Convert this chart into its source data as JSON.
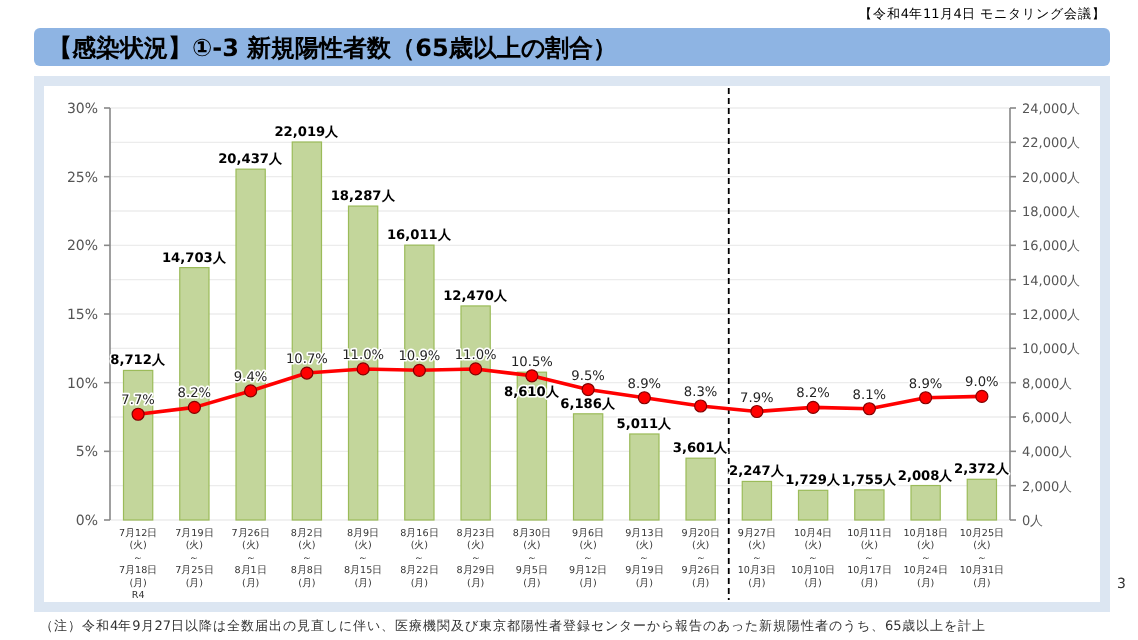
{
  "chart_data": {
    "type": "bar",
    "title": "【感染状況】①-3 新規陽性者数（65歳以上の割合）",
    "subtitle": "【令和4年11月4日 モニタリング会議】",
    "categories": [
      "7月12日\n(火)\n～\n7月18日\n(月)\nR4",
      "7月19日\n(火)\n～\n7月25日\n(月)",
      "7月26日\n(火)\n～\n8月1日\n(月)",
      "8月2日\n(火)\n～\n8月8日\n(月)",
      "8月9日\n(火)\n～\n8月15日\n(月)",
      "8月16日\n(火)\n～\n8月22日\n(月)",
      "8月23日\n(火)\n～\n8月29日\n(月)",
      "8月30日\n(火)\n～\n9月5日\n(月)",
      "9月6日\n(火)\n～\n9月12日\n(月)",
      "9月13日\n(火)\n～\n9月19日\n(月)",
      "9月20日\n(火)\n～\n9月26日\n(月)",
      "9月27日\n(火)\n～\n10月3日\n(月)",
      "10月4日\n(火)\n～\n10月10日\n(月)",
      "10月11日\n(火)\n～\n10月17日\n(月)",
      "10月18日\n(火)\n～\n10月24日\n(月)",
      "10月25日\n(火)\n～\n10月31日\n(月)"
    ],
    "series": [
      {
        "axis": "y2",
        "color": "#c3d69b",
        "values": [
          8712,
          14703,
          20437,
          22019,
          18287,
          16011,
          12470,
          8610,
          6186,
          5011,
          3601,
          2247,
          1729,
          1755,
          2008,
          2372
        ],
        "value_labels": [
          "8,712人",
          "14,703人",
          "20,437人",
          "22,019人",
          "18,287人",
          "16,011人",
          "12,470人",
          "8,610人",
          "6,186人",
          "5,011人",
          "3,601人",
          "2,247人",
          "1,729人",
          "1,755人",
          "2,008人",
          "2,372人"
        ]
      },
      {
        "type": "line",
        "axis": "y",
        "color": "#ff0000",
        "marker": "circle",
        "line_style": "solid",
        "values": [
          7.7,
          8.2,
          9.4,
          10.7,
          11.0,
          10.9,
          11.0,
          10.5,
          9.5,
          8.9,
          8.3,
          7.9,
          8.2,
          8.1,
          8.9,
          9.0
        ],
        "value_labels": [
          "7.7%",
          "8.2%",
          "9.4%",
          "10.7%",
          "11.0%",
          "10.9%",
          "11.0%",
          "10.5%",
          "9.5%",
          "8.9%",
          "8.3%",
          "7.9%",
          "8.2%",
          "8.1%",
          "8.9%",
          "9.0%"
        ]
      }
    ],
    "ylim": [
      0,
      30
    ],
    "yticks": [
      {
        "value": 0,
        "label": "0%"
      },
      {
        "value": 5,
        "label": "5%"
      },
      {
        "value": 10,
        "label": "10%"
      },
      {
        "value": 15,
        "label": "15%"
      },
      {
        "value": 20,
        "label": "20%"
      },
      {
        "value": 25,
        "label": "25%"
      },
      {
        "value": 30,
        "label": "30%"
      }
    ],
    "y2lim": [
      0,
      24000
    ],
    "y2ticks": [
      {
        "value": 0,
        "label": "0人"
      },
      {
        "value": 2000,
        "label": "2,000人"
      },
      {
        "value": 4000,
        "label": "4,000人"
      },
      {
        "value": 6000,
        "label": "6,000人"
      },
      {
        "value": 8000,
        "label": "8,000人"
      },
      {
        "value": 10000,
        "label": "10,000人"
      },
      {
        "value": 12000,
        "label": "12,000人"
      },
      {
        "value": 14000,
        "label": "14,000人"
      },
      {
        "value": 16000,
        "label": "16,000人"
      },
      {
        "value": 18000,
        "label": "18,000人"
      },
      {
        "value": 20000,
        "label": "20,000人"
      },
      {
        "value": 22000,
        "label": "22,000人"
      },
      {
        "value": 24000,
        "label": "24,000人"
      }
    ],
    "grid": true,
    "ref_lines": [
      {
        "axis": "x",
        "value": "9月27日\n(火)\n～\n10月3日\n(月)",
        "line_style": "dashed",
        "color": "#000000"
      }
    ],
    "annotations": [
      "（注）令和4年9月27日以降は全数届出の見直しに伴い、医療機関及び東京都陽性者登録センターから報告のあった新規陽性者のうち、65歳以上を計上",
      "3"
    ]
  }
}
